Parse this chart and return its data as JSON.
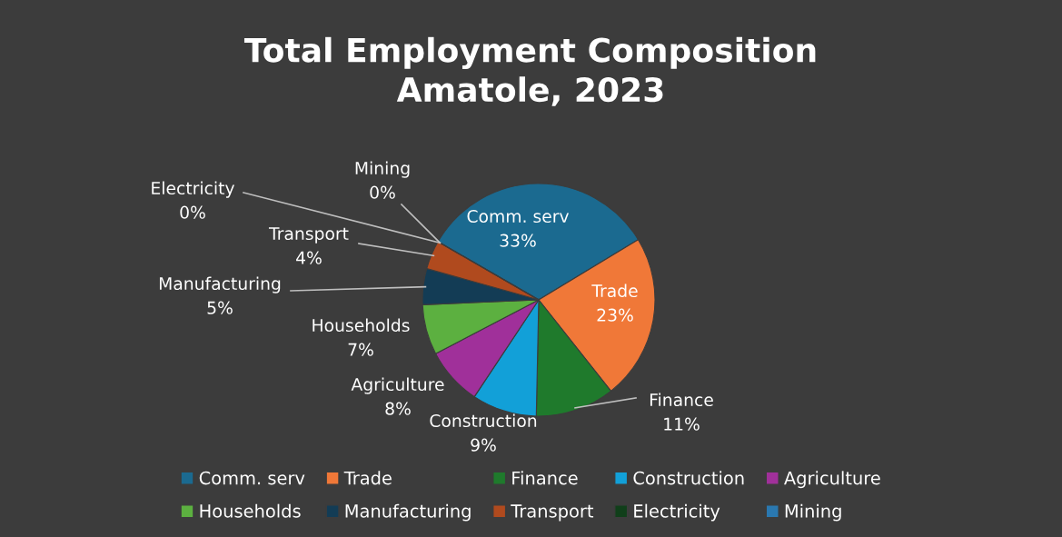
{
  "chart_data": {
    "type": "pie",
    "title": "Total Employment Composition\nAmatole, 2023",
    "categories": [
      "Comm. serv",
      "Trade",
      "Finance",
      "Construction",
      "Agriculture",
      "Households",
      "Manufacturing",
      "Transport",
      "Electricity",
      "Mining"
    ],
    "values": [
      33,
      23,
      11,
      9,
      8,
      7,
      5,
      4,
      0,
      0
    ],
    "value_labels": [
      "33%",
      "23%",
      "11%",
      "9%",
      "8%",
      "7%",
      "5%",
      "4%",
      "0%",
      "0%"
    ],
    "colors": [
      "#1b6a90",
      "#f07838",
      "#1f7a2c",
      "#12a0d8",
      "#a0309a",
      "#5cb040",
      "#133c55",
      "#b04a1e",
      "#103f1a",
      "#2a78b0"
    ],
    "legend": "bottom"
  }
}
